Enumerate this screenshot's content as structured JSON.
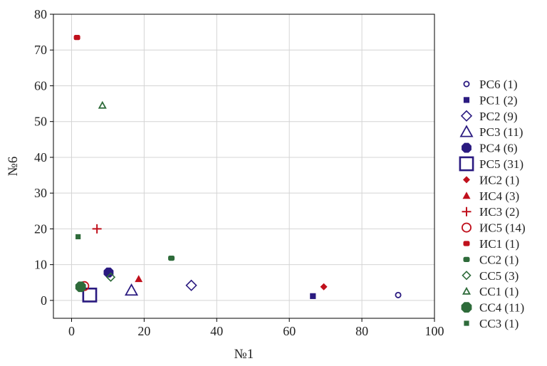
{
  "chart_data": {
    "type": "scatter",
    "xlabel": "№1",
    "ylabel": "№6",
    "xlim": [
      -5,
      100
    ],
    "ylim": [
      -5,
      80
    ],
    "xticks": [
      0,
      20,
      40,
      60,
      80,
      100
    ],
    "yticks": [
      0,
      10,
      20,
      30,
      40,
      50,
      60,
      70,
      80
    ],
    "grid": true,
    "legend_position": "right",
    "series": [
      {
        "name": "РС6 (1)",
        "marker": "circle-open",
        "size": 9,
        "color": "#2a1a80",
        "points": [
          [
            90,
            1.5
          ]
        ]
      },
      {
        "name": "РС1 (2)",
        "marker": "square-filled",
        "size": 10,
        "color": "#2a1a80",
        "points": [
          [
            66.5,
            1.2
          ]
        ]
      },
      {
        "name": "РС2 (9)",
        "marker": "diamond-open",
        "size": 14,
        "color": "#2a1a80",
        "points": [
          [
            33,
            4.2
          ]
        ]
      },
      {
        "name": "РС3 (11)",
        "marker": "triangle-open",
        "size": 16,
        "color": "#2a1a80",
        "points": [
          [
            16.5,
            2.8
          ]
        ]
      },
      {
        "name": "РС4 (6)",
        "marker": "octagon-filled",
        "size": 15,
        "color": "#2a1a80",
        "points": [
          [
            10.2,
            7.8
          ]
        ]
      },
      {
        "name": "РС5 (31)",
        "marker": "square-open",
        "size": 20,
        "color": "#2a1a80",
        "points": [
          [
            5,
            1.5
          ]
        ]
      },
      {
        "name": "ИС2 (1)",
        "marker": "diamond-filled",
        "size": 10,
        "color": "#c0101c",
        "points": [
          [
            69.5,
            3.8
          ]
        ]
      },
      {
        "name": "ИС4 (3)",
        "marker": "triangle-filled",
        "size": 11,
        "color": "#c0101c",
        "points": [
          [
            18.5,
            6
          ]
        ]
      },
      {
        "name": "ИС3 (2)",
        "marker": "plus",
        "size": 13,
        "color": "#c0101c",
        "points": [
          [
            7,
            20
          ]
        ]
      },
      {
        "name": "ИС5 (14)",
        "marker": "circle-open",
        "size": 14,
        "color": "#c0101c",
        "points": [
          [
            3.5,
            4
          ]
        ]
      },
      {
        "name": "ИС1 (1)",
        "marker": "rounded-filled",
        "size": 9,
        "color": "#c0101c",
        "points": [
          [
            1.5,
            73.5
          ]
        ]
      },
      {
        "name": "СС2 (1)",
        "marker": "rounded-filled",
        "size": 9,
        "color": "#2e6b3a",
        "points": [
          [
            27.5,
            11.8
          ]
        ]
      },
      {
        "name": "СС5 (3)",
        "marker": "diamond-open",
        "size": 11,
        "color": "#2e6b3a",
        "points": [
          [
            10.8,
            6.5
          ]
        ]
      },
      {
        "name": "СС1 (1)",
        "marker": "triangle-open",
        "size": 9,
        "color": "#2e6b3a",
        "points": [
          [
            8.5,
            54.5
          ]
        ]
      },
      {
        "name": "СС4 (11)",
        "marker": "octagon-filled",
        "size": 16,
        "color": "#2e6b3a",
        "points": [
          [
            2.5,
            3.8
          ]
        ]
      },
      {
        "name": "СС3 (1)",
        "marker": "square-filled",
        "size": 9,
        "color": "#2e6b3a",
        "points": [
          [
            1.8,
            17.8
          ]
        ]
      }
    ]
  }
}
